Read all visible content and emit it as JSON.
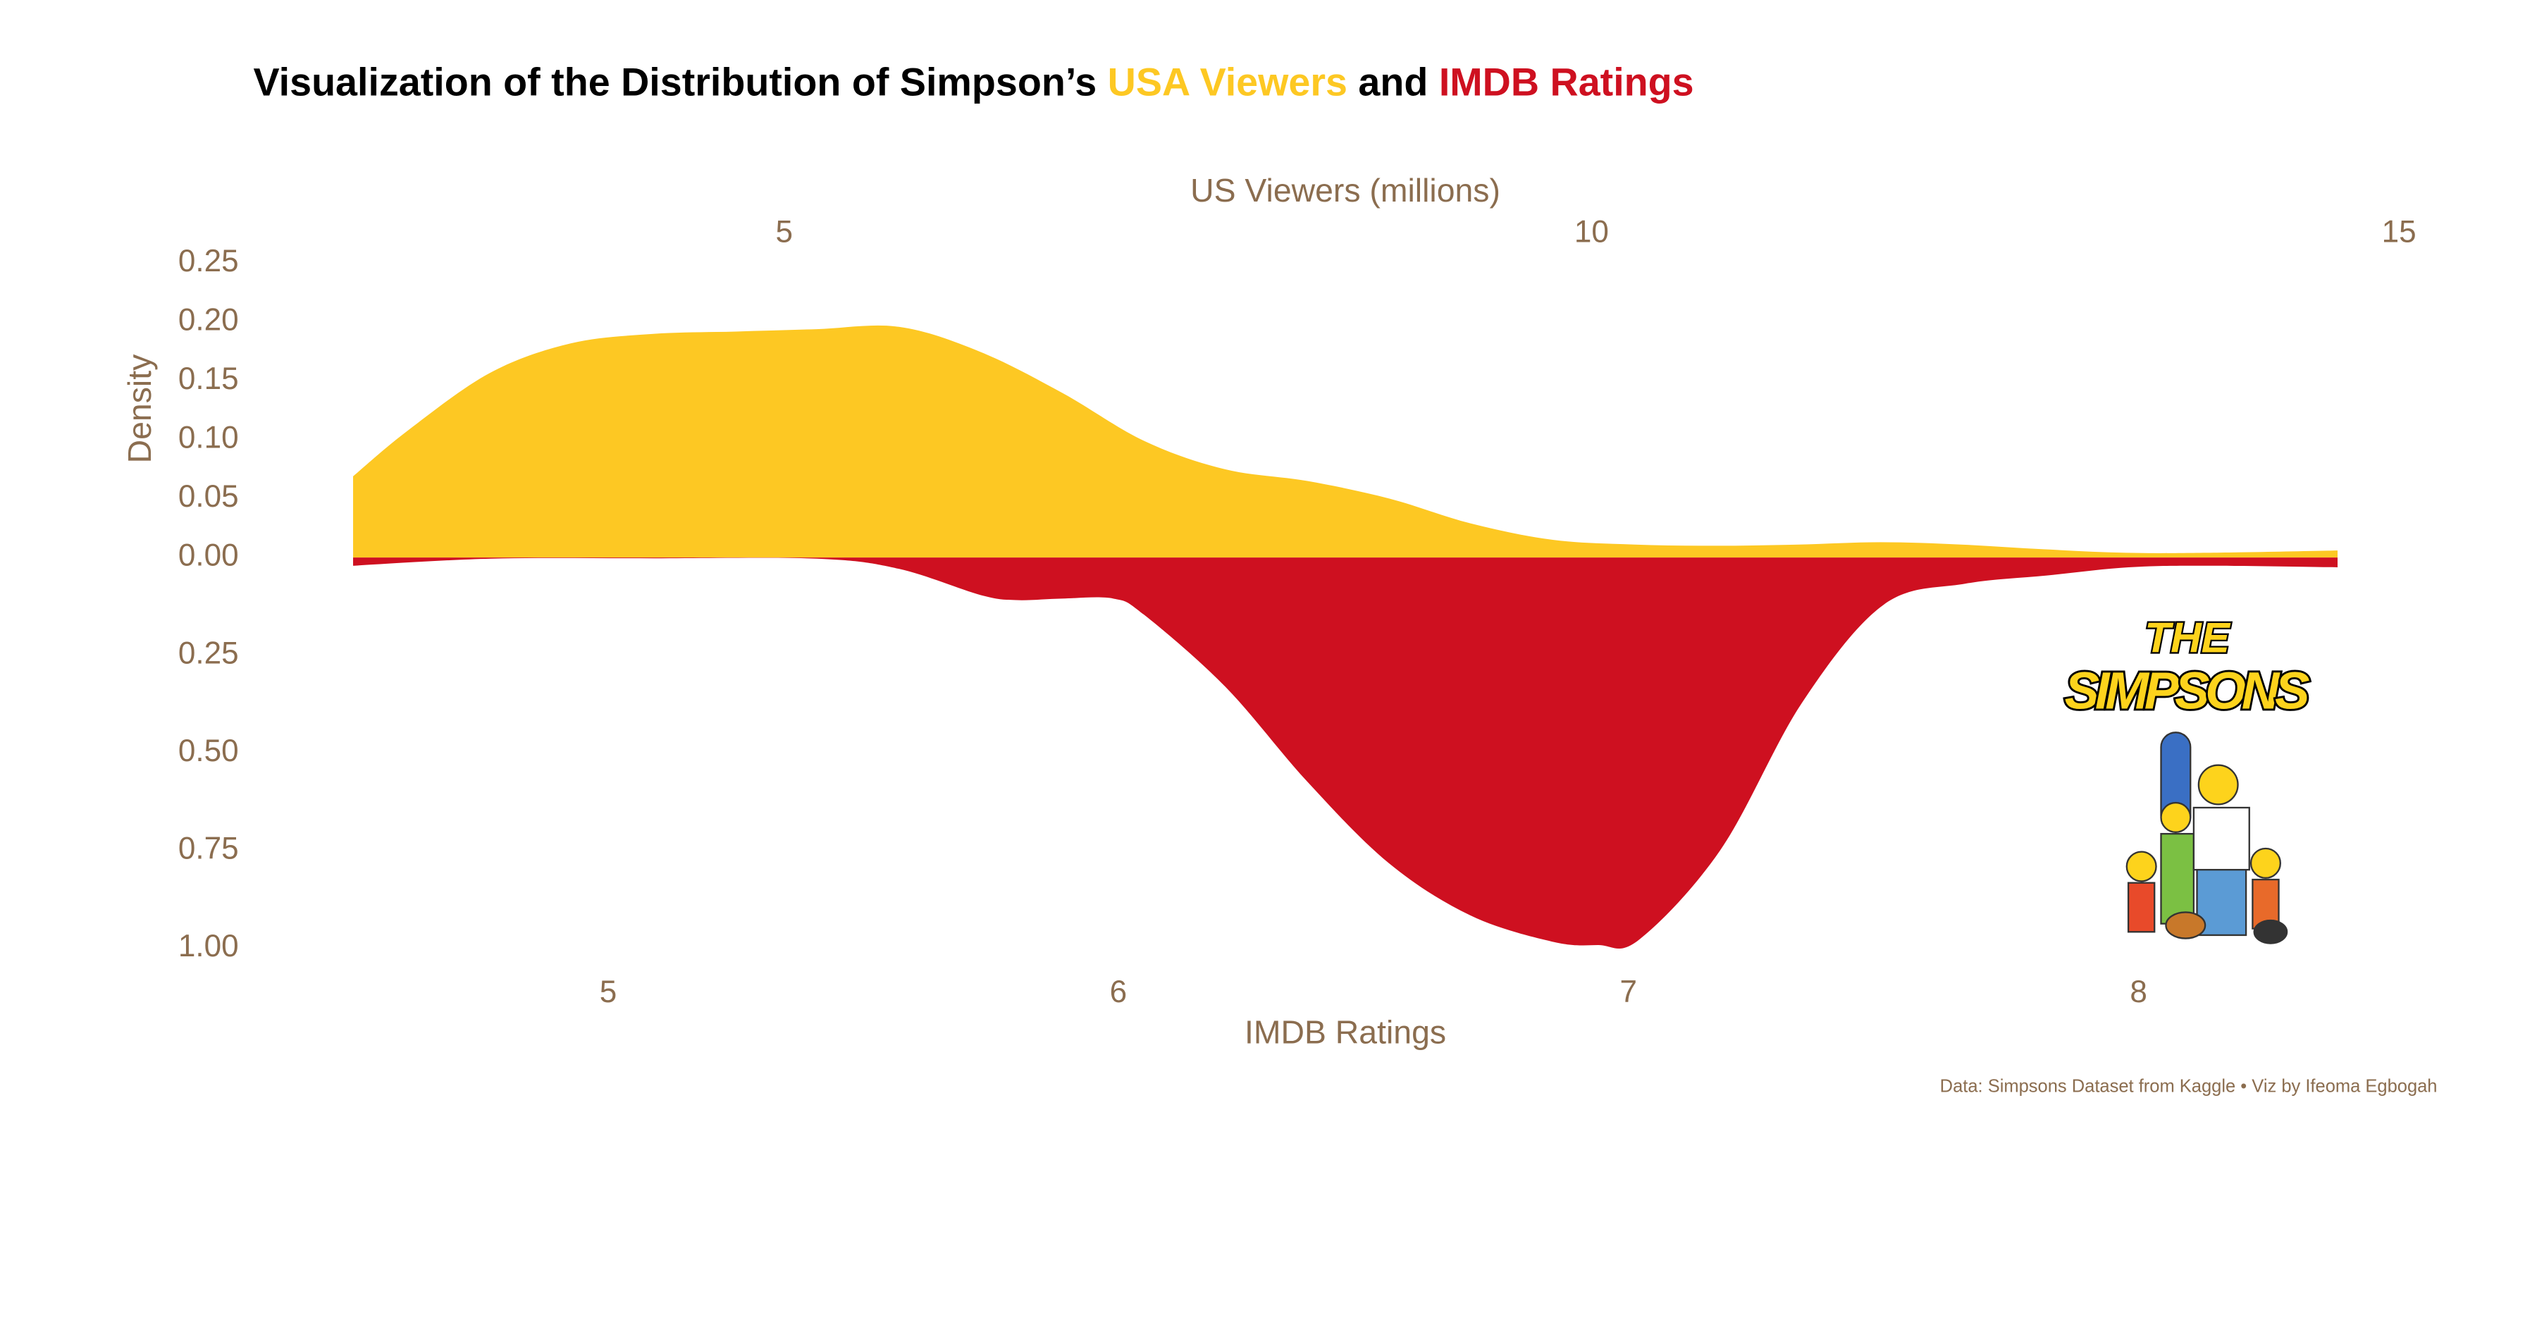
{
  "title": [
    {
      "text": "Visualization of the Distribution of Simpson’s ",
      "color": "#000000"
    },
    {
      "text": "USA Viewers",
      "color": "#fdc823"
    },
    {
      "text": " and ",
      "color": "#000000"
    },
    {
      "text": "IMDB Ratings",
      "color": "#ce1020"
    }
  ],
  "caption": "Data: Simpsons Dataset from Kaggle • Viz by Ifeoma Egbogah",
  "logo": {
    "top": "THE",
    "bottom": "SIMPSONS"
  },
  "chart_data": [
    {
      "type": "area",
      "color": "#fdc823",
      "xaxis": "top",
      "y_direction": "up",
      "xlabel": "US Viewers (millions)",
      "ylabel": "Density",
      "x": [
        2.33,
        2.67,
        3.18,
        3.68,
        4.19,
        4.7,
        5.2,
        5.71,
        6.21,
        6.72,
        7.23,
        7.73,
        8.24,
        8.75,
        9.25,
        9.76,
        10.27,
        10.77,
        11.28,
        11.79,
        12.29,
        12.8,
        13.31,
        13.81,
        14.62
      ],
      "values": [
        0.069,
        0.108,
        0.157,
        0.182,
        0.19,
        0.192,
        0.194,
        0.196,
        0.175,
        0.14,
        0.099,
        0.075,
        0.065,
        0.05,
        0.029,
        0.015,
        0.011,
        0.01,
        0.011,
        0.013,
        0.011,
        0.007,
        0.004,
        0.004,
        0.006
      ],
      "xlim": [
        2.33,
        14.62
      ],
      "xticks": [
        5,
        10,
        15
      ],
      "ylim": [
        0,
        0.25
      ],
      "yticks": [
        {
          "value": 0,
          "label": "0.00"
        },
        0.05,
        {
          "value": 0.1,
          "label": "0.10"
        },
        0.15,
        {
          "value": 0.2,
          "label": "0.20"
        },
        0.25
      ]
    },
    {
      "type": "area",
      "color": "#ce1020",
      "xaxis": "bottom",
      "y_direction": "down",
      "xlabel": "IMDB Ratings",
      "x": [
        4.5,
        4.77,
        5.09,
        5.41,
        5.57,
        5.73,
        5.8,
        5.89,
        5.99,
        6.05,
        6.21,
        6.37,
        6.53,
        6.69,
        6.85,
        6.94,
        7.02,
        7.18,
        7.34,
        7.5,
        7.66,
        7.82,
        7.98,
        8.14,
        8.39
      ],
      "values": [
        0.021,
        0.003,
        0.002,
        0.003,
        0.029,
        0.096,
        0.109,
        0.105,
        0.105,
        0.146,
        0.331,
        0.573,
        0.782,
        0.916,
        0.983,
        0.992,
        0.979,
        0.749,
        0.372,
        0.121,
        0.067,
        0.046,
        0.025,
        0.021,
        0.025
      ],
      "xlim": [
        4.5,
        8.39
      ],
      "xticks": [
        5,
        6,
        7,
        8
      ],
      "ylim": [
        0,
        1
      ],
      "yticks": [
        0.25,
        {
          "value": 0.5,
          "label": "0.50"
        },
        0.75,
        {
          "value": 1,
          "label": "1.00"
        }
      ]
    }
  ]
}
